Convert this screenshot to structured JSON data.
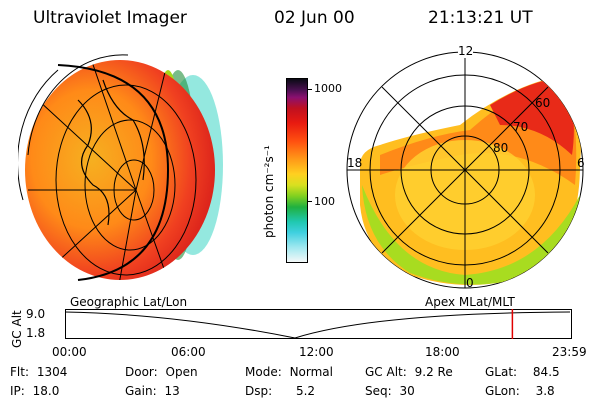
{
  "header": {
    "instrument": "Ultraviolet Imager",
    "date": "02 Jun 00",
    "time": "21:13:21 UT"
  },
  "colorbar": {
    "unit_label": "photon cm⁻²s⁻¹",
    "ticks": [
      "1000",
      "100"
    ]
  },
  "geo_panel": {
    "title": "Geographic Lat/Lon"
  },
  "polar_panel": {
    "title": "Apex MLat/MLT",
    "mlt_labels": {
      "top": "12",
      "left": "18",
      "right": "6",
      "bottom": "0"
    },
    "lat_labels": [
      "60",
      "70",
      "80"
    ]
  },
  "timeline": {
    "y_axis_title": "GC Alt",
    "y_ticks": [
      "9.0",
      "1.8"
    ],
    "x_ticks": [
      "00:00",
      "06:00",
      "12:00",
      "18:00",
      "23:59"
    ],
    "current_time_hours": 21.22,
    "marker_color": "#e00000"
  },
  "status": {
    "flt": {
      "label": "Flt:",
      "value": "1304"
    },
    "ip": {
      "label": "IP:",
      "value": "18.0"
    },
    "door": {
      "label": "Door:",
      "value": "Open"
    },
    "gain": {
      "label": "Gain:",
      "value": "13"
    },
    "mode": {
      "label": "Mode:",
      "value": "Normal"
    },
    "dsp": {
      "label": "Dsp:",
      "value": "5.2"
    },
    "gcalt": {
      "label": "GC Alt:",
      "value": "9.2 Re"
    },
    "seq": {
      "label": "Seq:",
      "value": "30"
    },
    "glat": {
      "label": "GLat:",
      "value": "84.5"
    },
    "glon": {
      "label": "GLon:",
      "value": "3.8"
    }
  }
}
